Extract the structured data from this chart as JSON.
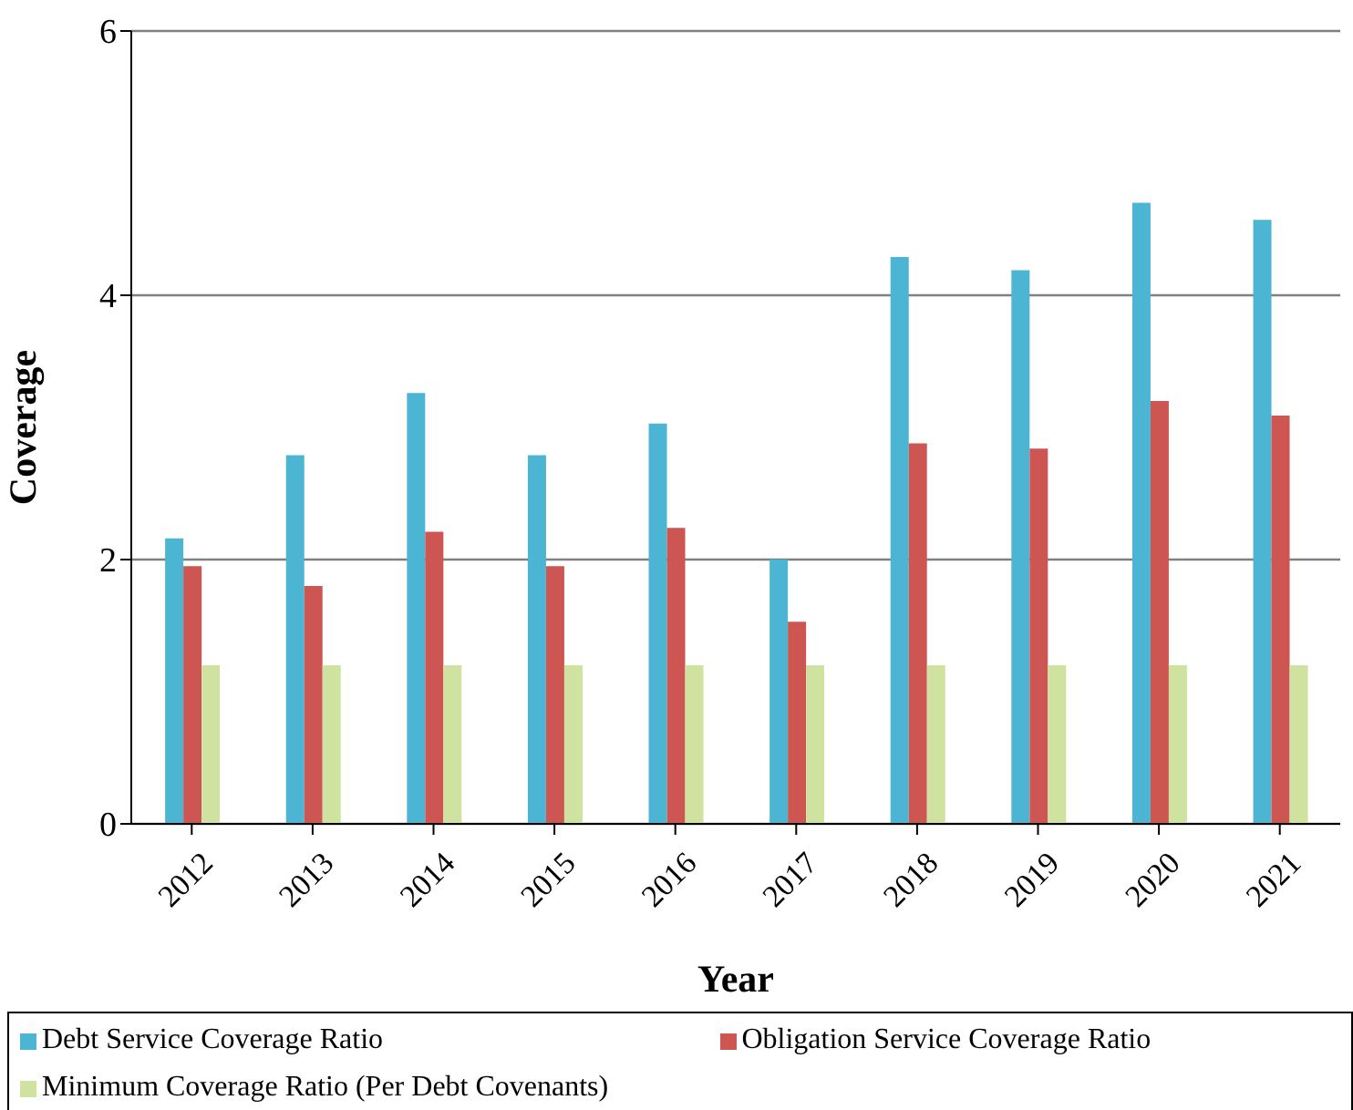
{
  "chart_data": {
    "type": "bar",
    "xlabel": "Year",
    "ylabel": "Coverage",
    "categories": [
      "2012",
      "2013",
      "2014",
      "2015",
      "2016",
      "2017",
      "2018",
      "2019",
      "2020",
      "2021"
    ],
    "series": [
      {
        "name": "Debt Service Coverage Ratio",
        "color": "#4bb5d3",
        "values": [
          2.16,
          2.79,
          3.26,
          2.79,
          3.03,
          2.0,
          4.29,
          4.19,
          4.7,
          4.57
        ]
      },
      {
        "name": "Obligation Service Coverage Ratio",
        "color": "#cd5653",
        "values": [
          1.95,
          1.8,
          2.21,
          1.95,
          2.24,
          1.53,
          2.88,
          2.84,
          3.2,
          3.09
        ]
      },
      {
        "name": "Minimum Coverage Ratio (Per Debt Covenants)",
        "color": "#cfe29f",
        "values": [
          1.2,
          1.2,
          1.2,
          1.2,
          1.2,
          1.2,
          1.2,
          1.2,
          1.2,
          1.2
        ]
      }
    ],
    "ylim": [
      0,
      6
    ],
    "yticks": [
      0,
      2,
      4,
      6
    ],
    "grid": "y",
    "legend": "bottom"
  }
}
